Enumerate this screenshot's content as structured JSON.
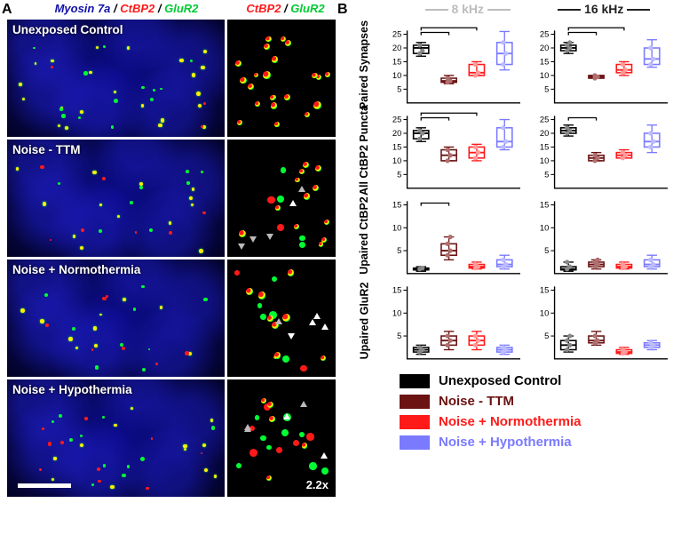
{
  "panelA": {
    "label": "A",
    "header_left_parts": [
      {
        "text": "Myosin 7a",
        "color": "#1111aa"
      },
      {
        "text": " / ",
        "color": "#000000"
      },
      {
        "text": "CtBP2",
        "color": "#ff1a1a"
      },
      {
        "text": " / ",
        "color": "#000000"
      },
      {
        "text": "GluR2",
        "color": "#00cc33"
      }
    ],
    "header_right_parts": [
      {
        "text": "CtBP2",
        "color": "#ff1a1a"
      },
      {
        "text": " / ",
        "color": "#000000"
      },
      {
        "text": "GluR2",
        "color": "#00cc33"
      }
    ],
    "rows": [
      {
        "label": "Unexposed Control"
      },
      {
        "label": "Noise - TTM"
      },
      {
        "label": "Noise + Normothermia"
      },
      {
        "label": "Noise + Hypothermia"
      }
    ],
    "zoom_text": "2.2x",
    "colors": {
      "red": "#ff1a1a",
      "green": "#00ff33",
      "yellow": "#ffee00",
      "white": "#ffffff",
      "grey": "#bbbbbb"
    }
  },
  "panelB": {
    "label": "B",
    "header_cols": [
      {
        "text": "8 kHz",
        "color": "#bdbdbd"
      },
      {
        "text": "16 kHz",
        "color": "#222222"
      }
    ],
    "groups": [
      {
        "name": "Unexposed Control",
        "color": "#000000",
        "text": "#000000",
        "fill": "#000000",
        "line": "#000000",
        "point": "#888888"
      },
      {
        "name": "Noise - TTM",
        "color": "#6b1212",
        "text": "#6b1212",
        "fill": "#6b1212",
        "line": "#6b1212",
        "point": "#b07070"
      },
      {
        "name": "Noise + Normothermia",
        "color": "#ff1a1a",
        "text": "#ff1a1a",
        "fill": "#ff1a1a",
        "line": "#ff1a1a",
        "point": "#ff9a9a"
      },
      {
        "name": "Noise + Hypothermia",
        "color": "#7a7aff",
        "text": "#7a7aff",
        "fill": "#7a7aff",
        "line": "#7a7aff",
        "point": "#bcbcff"
      }
    ],
    "axis": {
      "tick_fontsize": 10,
      "axis_color": "#000000",
      "bg": "#ffffff"
    },
    "plots": [
      {
        "ylabel": "Paired Synapses",
        "ylim": [
          0,
          25
        ],
        "yticks": [
          5,
          10,
          15,
          20,
          25
        ],
        "left": {
          "sig": [
            [
              0,
              1
            ],
            [
              0,
              2
            ]
          ],
          "boxes": [
            {
              "min": 17,
              "q1": 18,
              "med": 20,
              "q3": 21,
              "max": 22,
              "pts": [
                18,
                19,
                21
              ]
            },
            {
              "min": 7,
              "q1": 7.5,
              "med": 8,
              "q3": 9,
              "max": 10,
              "pts": [
                7.5,
                8,
                9
              ]
            },
            {
              "min": 10,
              "q1": 10,
              "med": 11,
              "q3": 14,
              "max": 15,
              "pts": [
                10,
                11,
                14
              ]
            },
            {
              "min": 12,
              "q1": 14,
              "med": 18,
              "q3": 22,
              "max": 26,
              "pts": [
                14,
                18,
                22
              ]
            }
          ]
        },
        "right": {
          "sig": [
            [
              0,
              1
            ],
            [
              0,
              2
            ]
          ],
          "boxes": [
            {
              "min": 18,
              "q1": 19,
              "med": 20,
              "q3": 21,
              "max": 22,
              "pts": [
                19,
                20,
                21,
                22
              ]
            },
            {
              "min": 9,
              "q1": 9,
              "med": 9.5,
              "q3": 10,
              "max": 10,
              "pts": [
                9,
                9.5,
                10
              ]
            },
            {
              "min": 10,
              "q1": 11,
              "med": 12,
              "q3": 14,
              "max": 15,
              "pts": [
                11,
                12,
                14
              ]
            },
            {
              "min": 13,
              "q1": 14,
              "med": 16,
              "q3": 20,
              "max": 23,
              "pts": [
                14,
                16,
                20
              ]
            }
          ]
        }
      },
      {
        "ylabel": "All CtBP2 Puncta",
        "ylim": [
          0,
          25
        ],
        "yticks": [
          5,
          10,
          15,
          20,
          25
        ],
        "left": {
          "sig": [
            [
              0,
              1
            ],
            [
              0,
              2
            ]
          ],
          "boxes": [
            {
              "min": 17,
              "q1": 18,
              "med": 20,
              "q3": 21,
              "max": 22,
              "pts": [
                18,
                20,
                21
              ]
            },
            {
              "min": 10,
              "q1": 10,
              "med": 12,
              "q3": 14,
              "max": 15,
              "pts": [
                10,
                12,
                14
              ]
            },
            {
              "min": 10,
              "q1": 11,
              "med": 13,
              "q3": 15,
              "max": 16,
              "pts": [
                11,
                13,
                15
              ]
            },
            {
              "min": 14,
              "q1": 15,
              "med": 17,
              "q3": 22,
              "max": 25,
              "pts": [
                15,
                17,
                22
              ]
            }
          ]
        },
        "right": {
          "sig": [
            [
              0,
              1
            ]
          ],
          "boxes": [
            {
              "min": 19,
              "q1": 20,
              "med": 21,
              "q3": 22,
              "max": 23,
              "pts": [
                20,
                21,
                22
              ]
            },
            {
              "min": 10,
              "q1": 10,
              "med": 11,
              "q3": 12,
              "max": 13,
              "pts": [
                10,
                11,
                12
              ]
            },
            {
              "min": 11,
              "q1": 11,
              "med": 12,
              "q3": 13,
              "max": 14,
              "pts": [
                11,
                12,
                13
              ]
            },
            {
              "min": 13,
              "q1": 15,
              "med": 17,
              "q3": 20,
              "max": 23,
              "pts": [
                15,
                17,
                20
              ]
            }
          ]
        }
      },
      {
        "ylabel": "Upaired CtBP2",
        "ylim": [
          0,
          15
        ],
        "yticks": [
          5,
          10,
          15
        ],
        "left": {
          "sig": [
            [
              0,
              1
            ]
          ],
          "boxes": [
            {
              "min": 0.5,
              "q1": 0.8,
              "med": 1,
              "q3": 1.2,
              "max": 1.5,
              "pts": [
                1,
                1.2
              ]
            },
            {
              "min": 3,
              "q1": 4,
              "med": 5,
              "q3": 6.5,
              "max": 8,
              "pts": [
                4,
                5,
                6.5,
                8
              ]
            },
            {
              "min": 1,
              "q1": 1.2,
              "med": 1.5,
              "q3": 2,
              "max": 2.5,
              "pts": [
                1.2,
                1.5,
                2
              ]
            },
            {
              "min": 1,
              "q1": 1.5,
              "med": 2,
              "q3": 3,
              "max": 4,
              "pts": [
                1.5,
                2,
                3
              ]
            }
          ]
        },
        "right": {
          "sig": [],
          "boxes": [
            {
              "min": 0.5,
              "q1": 0.8,
              "med": 1,
              "q3": 1.5,
              "max": 2.5,
              "pts": [
                1,
                1.5,
                2.5
              ]
            },
            {
              "min": 1,
              "q1": 1.5,
              "med": 2,
              "q3": 2.5,
              "max": 3,
              "pts": [
                1.5,
                2,
                2.5,
                3
              ]
            },
            {
              "min": 1,
              "q1": 1.2,
              "med": 1.5,
              "q3": 2,
              "max": 2.5,
              "pts": [
                1.2,
                1.5,
                2
              ]
            },
            {
              "min": 1,
              "q1": 1.5,
              "med": 2,
              "q3": 3,
              "max": 4,
              "pts": [
                1.5,
                2,
                3
              ]
            }
          ]
        }
      },
      {
        "ylabel": "Upaired GluR2",
        "ylim": [
          0,
          15
        ],
        "yticks": [
          5,
          10,
          15
        ],
        "left": {
          "sig": [],
          "boxes": [
            {
              "min": 1,
              "q1": 1.5,
              "med": 2,
              "q3": 2.5,
              "max": 3,
              "pts": [
                1.5,
                2,
                2.5
              ]
            },
            {
              "min": 2,
              "q1": 3,
              "med": 4,
              "q3": 5,
              "max": 6,
              "pts": [
                3,
                4,
                5
              ]
            },
            {
              "min": 2,
              "q1": 3,
              "med": 4,
              "q3": 5,
              "max": 6,
              "pts": [
                3,
                4,
                5
              ]
            },
            {
              "min": 1,
              "q1": 1.5,
              "med": 2,
              "q3": 2.5,
              "max": 3,
              "pts": [
                1.5,
                2,
                2.5
              ]
            }
          ]
        },
        "right": {
          "sig": [],
          "boxes": [
            {
              "min": 1.5,
              "q1": 2,
              "med": 3,
              "q3": 4,
              "max": 5,
              "pts": [
                2,
                3,
                4,
                5
              ]
            },
            {
              "min": 3,
              "q1": 3.5,
              "med": 4,
              "q3": 5,
              "max": 6,
              "pts": [
                3.5,
                4,
                5
              ]
            },
            {
              "min": 1,
              "q1": 1.2,
              "med": 1.5,
              "q3": 2,
              "max": 2.5,
              "pts": [
                1.2,
                1.5,
                2
              ]
            },
            {
              "min": 2,
              "q1": 2.5,
              "med": 3,
              "q3": 3.5,
              "max": 4,
              "pts": [
                2.5,
                3,
                3.5
              ]
            }
          ]
        }
      }
    ]
  }
}
